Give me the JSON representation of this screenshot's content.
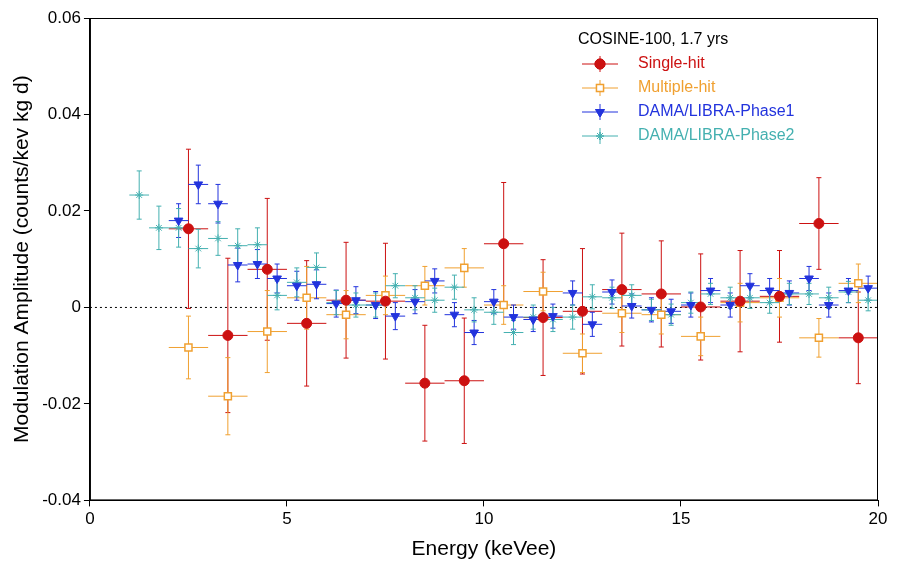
{
  "chart_data": {
    "type": "scatter",
    "x_label": "Energy (keVee)",
    "y_label": "Modulation Amplitude (counts/kev kg d)",
    "xlim": [
      0,
      20
    ],
    "xticks": [
      0,
      5,
      10,
      15,
      20
    ],
    "ylim": [
      -0.04,
      0.06
    ],
    "yticks": [
      -0.04,
      -0.02,
      0,
      0.02,
      0.04,
      0.06
    ],
    "grid": false,
    "legend": "upper right",
    "legend_title": "COSINE-100, 1.7 yrs",
    "zero_line": {
      "value": 0,
      "line_style": "dotted"
    },
    "series": [
      {
        "name": "Single-hit",
        "color": "#cc1111",
        "marker": "circle",
        "x": [
          2.5,
          3.5,
          4.5,
          5.5,
          6.5,
          7.5,
          8.5,
          9.5,
          10.5,
          11.5,
          12.5,
          13.5,
          14.5,
          15.5,
          16.5,
          17.5,
          18.5,
          19.5
        ],
        "values": [
          0.0163,
          -0.0058,
          0.0079,
          -0.0033,
          0.0015,
          0.0013,
          -0.0157,
          -0.0152,
          0.0132,
          -0.0021,
          -0.0008,
          0.0037,
          0.0028,
          0.0001,
          0.0013,
          0.0023,
          0.0174,
          -0.0063
        ],
        "x_errors": [
          0.5,
          0.5,
          0.5,
          0.5,
          0.5,
          0.5,
          0.5,
          0.5,
          0.5,
          0.5,
          0.5,
          0.5,
          0.5,
          0.5,
          0.5,
          0.5,
          0.5,
          0.5
        ],
        "y_errors": [
          0.0165,
          0.016,
          0.0147,
          0.013,
          0.012,
          0.012,
          0.012,
          0.013,
          0.0127,
          0.012,
          0.013,
          0.0117,
          0.011,
          0.011,
          0.0105,
          0.0095,
          0.0095,
          0.0095
        ]
      },
      {
        "name": "Multiple-hit",
        "color": "#f0a030",
        "marker": "open_square",
        "x": [
          2.5,
          3.5,
          4.5,
          5.5,
          6.5,
          7.5,
          8.5,
          9.5,
          10.5,
          11.5,
          12.5,
          13.5,
          14.5,
          15.5,
          16.5,
          17.5,
          18.5,
          19.5
        ],
        "values": [
          -0.0083,
          -0.0184,
          -0.005,
          0.002,
          -0.0015,
          0.0025,
          0.0045,
          0.0082,
          0.0005,
          0.0033,
          -0.0095,
          -0.0012,
          -0.0015,
          -0.006,
          0.001,
          0.002,
          -0.0063,
          0.005
        ],
        "x_errors": [
          0.5,
          0.5,
          0.5,
          0.5,
          0.5,
          0.5,
          0.5,
          0.5,
          0.5,
          0.5,
          0.5,
          0.5,
          0.5,
          0.5,
          0.5,
          0.5,
          0.5,
          0.5
        ],
        "y_errors": [
          0.0065,
          0.008,
          0.0085,
          0.0065,
          0.005,
          0.004,
          0.004,
          0.004,
          0.004,
          0.004,
          0.004,
          0.004,
          0.004,
          0.004,
          0.004,
          0.004,
          0.004,
          0.004
        ]
      },
      {
        "name": "DAMA/LIBRA-Phase1",
        "color": "#2233dd",
        "marker": "triangle_down",
        "x": [
          2.25,
          2.75,
          3.25,
          3.75,
          4.25,
          4.75,
          5.25,
          5.75,
          6.25,
          6.75,
          7.25,
          7.75,
          8.25,
          8.75,
          9.25,
          9.75,
          10.25,
          10.75,
          11.25,
          11.75,
          12.25,
          12.75,
          13.25,
          13.75,
          14.25,
          14.75,
          15.25,
          15.75,
          16.25,
          16.75,
          17.25,
          17.75,
          18.25,
          18.75,
          19.25,
          19.75
        ],
        "values": [
          0.018,
          0.0255,
          0.0215,
          0.0088,
          0.009,
          0.006,
          0.0045,
          0.0048,
          0.0008,
          0.0015,
          0.0005,
          -0.0018,
          0.0012,
          0.0055,
          -0.0015,
          -0.0052,
          0.0012,
          -0.002,
          -0.0025,
          -0.0018,
          0.003,
          -0.0035,
          0.0032,
          0.0003,
          -0.0005,
          -0.0008,
          0.0005,
          0.0035,
          0.0005,
          0.0045,
          0.0035,
          0.003,
          0.006,
          0.0005,
          0.0035,
          0.004
        ],
        "x_errors": [
          0.25,
          0.25,
          0.25,
          0.25,
          0.25,
          0.25,
          0.25,
          0.25,
          0.25,
          0.25,
          0.25,
          0.25,
          0.25,
          0.25,
          0.25,
          0.25,
          0.25,
          0.25,
          0.25,
          0.25,
          0.25,
          0.25,
          0.25,
          0.25,
          0.25,
          0.25,
          0.25,
          0.25,
          0.25,
          0.25,
          0.25,
          0.25,
          0.25,
          0.25,
          0.25,
          0.25
        ],
        "y_errors": [
          0.0035,
          0.004,
          0.004,
          0.0035,
          0.003,
          0.003,
          0.003,
          0.003,
          0.0028,
          0.0028,
          0.0028,
          0.0028,
          0.0025,
          0.0025,
          0.0025,
          0.0025,
          0.0025,
          0.0025,
          0.0025,
          0.0025,
          0.0025,
          0.0025,
          0.0025,
          0.0025,
          0.0025,
          0.0025,
          0.0025,
          0.0025,
          0.0025,
          0.0025,
          0.0025,
          0.0025,
          0.0025,
          0.0025,
          0.0025,
          0.0025
        ]
      },
      {
        "name": "DAMA/LIBRA-Phase2",
        "color": "#44b0b0",
        "marker": "star",
        "x": [
          1.25,
          1.75,
          2.25,
          2.75,
          3.25,
          3.75,
          4.25,
          4.75,
          5.25,
          5.75,
          6.25,
          6.75,
          7.25,
          7.75,
          8.25,
          8.75,
          9.25,
          9.75,
          10.25,
          10.75,
          11.25,
          11.75,
          12.25,
          12.75,
          13.25,
          13.75,
          14.25,
          14.75,
          15.25,
          15.75,
          16.25,
          16.75,
          17.25,
          17.75,
          18.25,
          18.75,
          19.25,
          19.75
        ],
        "values": [
          0.0233,
          0.0165,
          0.0165,
          0.0122,
          0.0143,
          0.0128,
          0.013,
          0.0025,
          0.0052,
          0.0083,
          0.001,
          0.0005,
          0.0005,
          0.0045,
          0.002,
          0.0015,
          0.0042,
          -0.0005,
          -0.001,
          -0.0052,
          -0.002,
          -0.0025,
          -0.002,
          0.0022,
          0.002,
          0.0025,
          -0.0005,
          -0.0015,
          0.001,
          0.0028,
          0.002,
          0.002,
          0.001,
          0.0028,
          0.0028,
          0.002,
          0.0032,
          0.0015
        ],
        "x_errors": [
          0.25,
          0.25,
          0.25,
          0.25,
          0.25,
          0.25,
          0.25,
          0.25,
          0.25,
          0.25,
          0.25,
          0.25,
          0.25,
          0.25,
          0.25,
          0.25,
          0.25,
          0.25,
          0.25,
          0.25,
          0.25,
          0.25,
          0.25,
          0.25,
          0.25,
          0.25,
          0.25,
          0.25,
          0.25,
          0.25,
          0.25,
          0.25,
          0.25,
          0.25,
          0.25,
          0.25,
          0.25,
          0.25
        ],
        "y_errors": [
          0.005,
          0.0045,
          0.004,
          0.004,
          0.0035,
          0.0035,
          0.0035,
          0.003,
          0.003,
          0.003,
          0.0025,
          0.0025,
          0.0025,
          0.0025,
          0.0025,
          0.0025,
          0.0025,
          0.0025,
          0.0025,
          0.0025,
          0.0025,
          0.0025,
          0.0025,
          0.0025,
          0.0022,
          0.0022,
          0.0022,
          0.0022,
          0.0022,
          0.0022,
          0.0022,
          0.0022,
          0.0022,
          0.0022,
          0.0022,
          0.0022,
          0.0022,
          0.0022
        ]
      }
    ]
  }
}
